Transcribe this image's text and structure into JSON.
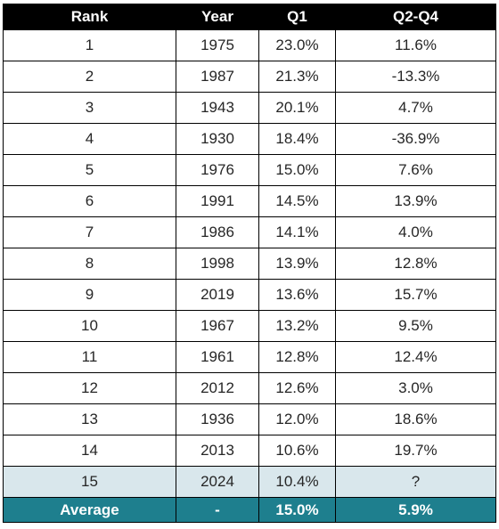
{
  "chart_data": {
    "type": "table",
    "columns": [
      "Rank",
      "Year",
      "Q1",
      "Q2-Q4"
    ],
    "rows": [
      [
        "1",
        "1975",
        "23.0%",
        "11.6%"
      ],
      [
        "2",
        "1987",
        "21.3%",
        "-13.3%"
      ],
      [
        "3",
        "1943",
        "20.1%",
        "4.7%"
      ],
      [
        "4",
        "1930",
        "18.4%",
        "-36.9%"
      ],
      [
        "5",
        "1976",
        "15.0%",
        "7.6%"
      ],
      [
        "6",
        "1991",
        "14.5%",
        "13.9%"
      ],
      [
        "7",
        "1986",
        "14.1%",
        "4.0%"
      ],
      [
        "8",
        "1998",
        "13.9%",
        "12.8%"
      ],
      [
        "9",
        "2019",
        "13.6%",
        "15.7%"
      ],
      [
        "10",
        "1967",
        "13.2%",
        "9.5%"
      ],
      [
        "11",
        "1961",
        "12.8%",
        "12.4%"
      ],
      [
        "12",
        "2012",
        "12.6%",
        "3.0%"
      ],
      [
        "13",
        "1936",
        "12.0%",
        "18.6%"
      ],
      [
        "14",
        "2013",
        "10.6%",
        "19.7%"
      ],
      [
        "15",
        "2024",
        "10.4%",
        "?"
      ]
    ],
    "highlight_row": 14,
    "footer": [
      "Average",
      "-",
      "15.0%",
      "5.9%"
    ]
  },
  "colors": {
    "header_bg": "#000000",
    "highlight_bg": "#d9e7ec",
    "footer_bg": "#1e7f8e"
  }
}
